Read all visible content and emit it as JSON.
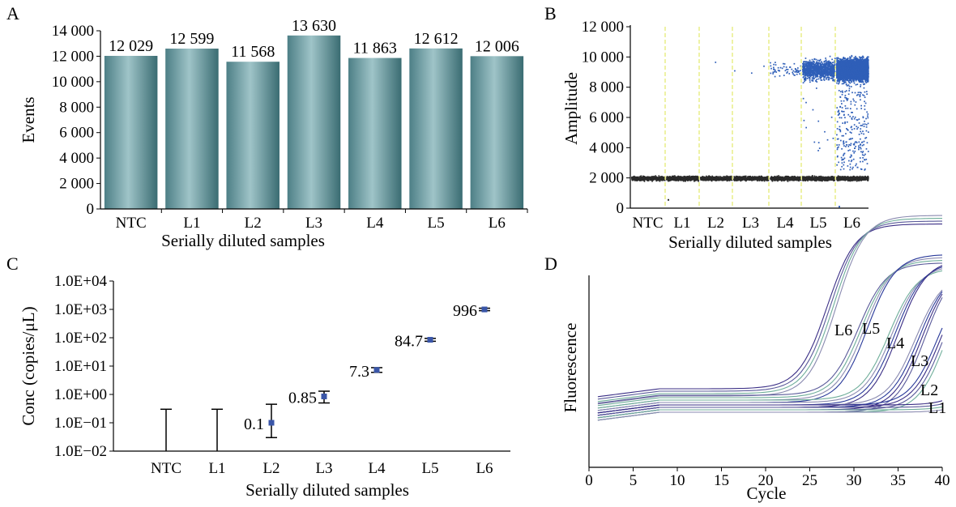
{
  "chart_data": [
    {
      "panel": "A",
      "type": "bar",
      "categories": [
        "NTC",
        "L1",
        "L2",
        "L3",
        "L4",
        "L5",
        "L6"
      ],
      "values": [
        12029,
        12599,
        11568,
        13630,
        11863,
        12612,
        12006
      ],
      "value_labels": [
        "12 029",
        "12 599",
        "11 568",
        "13 630",
        "11 863",
        "12 612",
        "12 006"
      ],
      "xlabel": "Serially diluted samples",
      "ylabel": "Events",
      "ylim": [
        0,
        14000
      ],
      "yticks": [
        0,
        2000,
        4000,
        6000,
        8000,
        10000,
        12000,
        14000
      ],
      "ytick_labels": [
        "0",
        "2 000",
        "4 000",
        "6 000",
        "8 000",
        "10 000",
        "12 000",
        "14 000"
      ],
      "bar_color": "#4f8a8f"
    },
    {
      "panel": "B",
      "type": "scatter",
      "categories": [
        "NTC",
        "L1",
        "L2",
        "L3",
        "L4",
        "L5",
        "L6"
      ],
      "xlabel": "Serially diluted samples",
      "ylabel": "Amplitude",
      "ylim": [
        0,
        12000
      ],
      "yticks": [
        0,
        2000,
        4000,
        6000,
        8000,
        10000,
        12000
      ],
      "ytick_labels": [
        "0",
        "2 000",
        "4 000",
        "6 000",
        "8 000",
        "10 000",
        "12 000"
      ],
      "negative_band_amplitude": 2000,
      "positive_band_amplitude": 9200,
      "positive_droplet_density": [
        0,
        0,
        1,
        3,
        60,
        1000,
        6000
      ],
      "negative_color": "#2a2a2a",
      "positive_color": "#2f5fb8",
      "divider_color": "#e3e86a"
    },
    {
      "panel": "C",
      "type": "scatter",
      "categories": [
        "NTC",
        "L1",
        "L2",
        "L3",
        "L4",
        "L5",
        "L6"
      ],
      "values": [
        null,
        null,
        0.1,
        0.85,
        7.3,
        84.7,
        996
      ],
      "value_labels": [
        "",
        "",
        "0.1",
        "0.85",
        "7.3",
        "84.7",
        "996"
      ],
      "error_upper": [
        0.3,
        0.3,
        0.45,
        1.3,
        8.8,
        95,
        1100
      ],
      "error_lower": [
        null,
        null,
        0.03,
        0.5,
        6.0,
        75,
        900
      ],
      "xlabel": "Serially diluted samples",
      "ylabel": "Conc (copies/μL)",
      "yscale": "log",
      "ylim": [
        0.01,
        10000
      ],
      "ytick_labels": [
        "1.0E−02",
        "1.0E−01",
        "1.0E+00",
        "1.0E+01",
        "1.0E+02",
        "1.0E+03",
        "1.0E+04"
      ],
      "point_color": "#3a56a8"
    },
    {
      "panel": "D",
      "type": "line",
      "xlabel": "Cycle",
      "ylabel": "Fluorescence",
      "xlim": [
        0,
        40
      ],
      "xticks": [
        0,
        5,
        10,
        15,
        20,
        25,
        30,
        35,
        40
      ],
      "series": [
        {
          "name": "L6",
          "ct": 27.5
        },
        {
          "name": "L5",
          "ct": 31.0
        },
        {
          "name": "L4",
          "ct": 34.5
        },
        {
          "name": "L3",
          "ct": 37.5
        },
        {
          "name": "L2",
          "ct": 40.0
        },
        {
          "name": "L1",
          "ct": 46.0
        }
      ],
      "line_colors": [
        "#3b2f86",
        "#5a5a9a",
        "#6fae9a",
        "#8a8ab0",
        "#2a3a9a"
      ]
    }
  ],
  "panel_labels": [
    "A",
    "B",
    "C",
    "D"
  ]
}
